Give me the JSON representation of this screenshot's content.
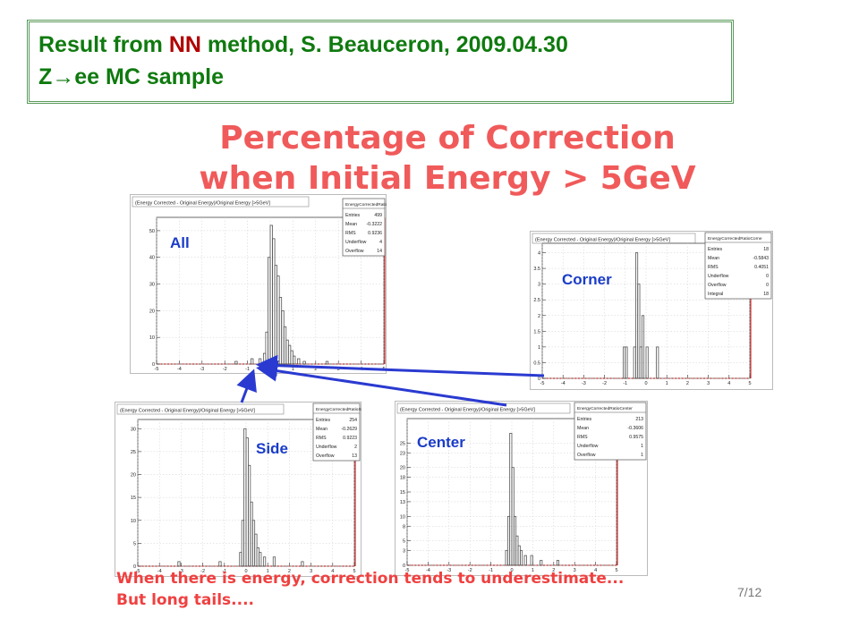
{
  "header": {
    "line1_pre": "Result from ",
    "line1_nn": "NN",
    "line1_post": " method, S. Beauceron,  2009.04.30",
    "line2": "Z→ee MC sample"
  },
  "headline": {
    "line1": "Percentage of Correction",
    "line2": "when Initial Energy > 5GeV"
  },
  "footer": {
    "line1": "When there is energy, correction tends to underestimate...",
    "line2": "But long tails....",
    "page": "7/12"
  },
  "colors": {
    "label_blue": "#1a3cc8",
    "arrow_blue": "#2a3ad0",
    "frame_red": "#d03030",
    "hist_line": "#555555"
  },
  "chart_data": [
    {
      "type": "histogram",
      "label": "All",
      "title": "(Energy Corrected - Original Energy)/Original Energy [>5GeV]",
      "stats_name": "EnergyCorrectedRatioA",
      "stats": [
        [
          "Entries",
          "499"
        ],
        [
          "Mean",
          "-0.3222"
        ],
        [
          "RMS",
          "0.9236"
        ],
        [
          "Underflow",
          "4"
        ],
        [
          "Overflow",
          "14"
        ]
      ],
      "xlim": [
        -5,
        5
      ],
      "ylim": [
        0,
        55
      ],
      "x_ticks": [
        "-5",
        "-4",
        "-3",
        "-2",
        "-1",
        "0",
        "1",
        "2",
        "3",
        "4",
        "5"
      ],
      "y_ticks": [
        "0",
        "10",
        "20",
        "30",
        "40",
        "50"
      ],
      "bins": [
        {
          "x": -0.25,
          "y": 4
        },
        {
          "x": -0.15,
          "y": 12
        },
        {
          "x": -0.05,
          "y": 40
        },
        {
          "x": 0.05,
          "y": 52
        },
        {
          "x": 0.15,
          "y": 47
        },
        {
          "x": 0.25,
          "y": 37
        },
        {
          "x": 0.35,
          "y": 33
        },
        {
          "x": 0.45,
          "y": 25
        },
        {
          "x": 0.55,
          "y": 20
        },
        {
          "x": 0.65,
          "y": 14
        },
        {
          "x": 0.75,
          "y": 9
        },
        {
          "x": 0.85,
          "y": 7
        },
        {
          "x": 0.95,
          "y": 5
        },
        {
          "x": 1.05,
          "y": 3
        },
        {
          "x": 1.25,
          "y": 2
        },
        {
          "x": 1.5,
          "y": 1
        },
        {
          "x": -1.5,
          "y": 1
        },
        {
          "x": -0.8,
          "y": 2
        },
        {
          "x": -0.45,
          "y": 2
        },
        {
          "x": 2.5,
          "y": 1
        }
      ]
    },
    {
      "type": "histogram",
      "label": "Corner",
      "title": "(Energy Corrected - Original Energy)/Original Energy [>5GeV]",
      "stats_name": "EnergyCorrectedRatioCorne",
      "stats": [
        [
          "Entries",
          "18"
        ],
        [
          "Mean",
          "-0.5843"
        ],
        [
          "RMS",
          "0.4051"
        ],
        [
          "Underflow",
          "0"
        ],
        [
          "Overflow",
          "0"
        ],
        [
          "Integral",
          "18"
        ]
      ],
      "xlim": [
        -5,
        5
      ],
      "ylim": [
        0,
        4.3
      ],
      "x_ticks": [
        "-5",
        "-4",
        "-3",
        "-2",
        "-1",
        "0",
        "1",
        "2",
        "3",
        "4",
        "5"
      ],
      "y_ticks": [
        "0",
        "0.5",
        "1",
        "1.5",
        "2",
        "2.5",
        "3",
        "3.5",
        "4"
      ],
      "bins": [
        {
          "x": -1.05,
          "y": 1
        },
        {
          "x": -0.95,
          "y": 1
        },
        {
          "x": -0.55,
          "y": 1
        },
        {
          "x": -0.45,
          "y": 4
        },
        {
          "x": -0.35,
          "y": 3
        },
        {
          "x": -0.25,
          "y": 1
        },
        {
          "x": -0.15,
          "y": 2
        },
        {
          "x": 0.05,
          "y": 1
        },
        {
          "x": 0.55,
          "y": 1
        }
      ]
    },
    {
      "type": "histogram",
      "label": "Side",
      "title": "(Energy Corrected - Original Energy)/Original Energy [>5GeV]",
      "stats_name": "EnergyCorrectedRatioSide",
      "stats": [
        [
          "Entries",
          "254"
        ],
        [
          "Mean",
          "-0.2629"
        ],
        [
          "RMS",
          "0.9223"
        ],
        [
          "Underflow",
          "2"
        ],
        [
          "Overflow",
          "13"
        ]
      ],
      "xlim": [
        -5,
        5
      ],
      "ylim": [
        0,
        32
      ],
      "x_ticks": [
        "-5",
        "-4",
        "-3",
        "-2",
        "-1",
        "0",
        "1",
        "2",
        "3",
        "4",
        "5"
      ],
      "y_ticks": [
        "0",
        "5",
        "10",
        "15",
        "20",
        "25",
        "30"
      ],
      "bins": [
        {
          "x": -0.25,
          "y": 3
        },
        {
          "x": -0.15,
          "y": 10
        },
        {
          "x": -0.05,
          "y": 30
        },
        {
          "x": 0.05,
          "y": 28
        },
        {
          "x": 0.15,
          "y": 22
        },
        {
          "x": 0.25,
          "y": 14
        },
        {
          "x": 0.35,
          "y": 10
        },
        {
          "x": 0.45,
          "y": 7
        },
        {
          "x": 0.55,
          "y": 4
        },
        {
          "x": 0.65,
          "y": 3
        },
        {
          "x": 0.85,
          "y": 2
        },
        {
          "x": 1.3,
          "y": 2
        },
        {
          "x": 2.6,
          "y": 1
        },
        {
          "x": -1.2,
          "y": 1
        },
        {
          "x": -3.1,
          "y": 1
        }
      ]
    },
    {
      "type": "histogram",
      "label": "Center",
      "title": "(Energy Corrected - Original Energy)/Original Energy [>5GeV]",
      "stats_name": "EnergyCorrectedRatioCenter",
      "stats": [
        [
          "Entries",
          "213"
        ],
        [
          "Mean",
          "-0.3606"
        ],
        [
          "RMS",
          "0.9575"
        ],
        [
          "Underflow",
          "1"
        ],
        [
          "Overflow",
          "1"
        ]
      ],
      "xlim": [
        -5,
        5
      ],
      "ylim": [
        0,
        30
      ],
      "x_ticks": [
        "-5",
        "-4",
        "-3",
        "-2",
        "-1",
        "0",
        "1",
        "2",
        "3",
        "4",
        "5"
      ],
      "y_ticks": [
        "0",
        "3",
        "5",
        "8",
        "10",
        "13",
        "15",
        "18",
        "20",
        "23",
        "25"
      ],
      "bins": [
        {
          "x": -0.25,
          "y": 3
        },
        {
          "x": -0.15,
          "y": 10
        },
        {
          "x": -0.05,
          "y": 27
        },
        {
          "x": 0.05,
          "y": 20
        },
        {
          "x": 0.15,
          "y": 10
        },
        {
          "x": 0.25,
          "y": 6
        },
        {
          "x": 0.35,
          "y": 4
        },
        {
          "x": 0.45,
          "y": 3
        },
        {
          "x": 0.65,
          "y": 2
        },
        {
          "x": 0.95,
          "y": 2
        },
        {
          "x": 1.4,
          "y": 1
        },
        {
          "x": 2.2,
          "y": 1
        }
      ]
    }
  ]
}
